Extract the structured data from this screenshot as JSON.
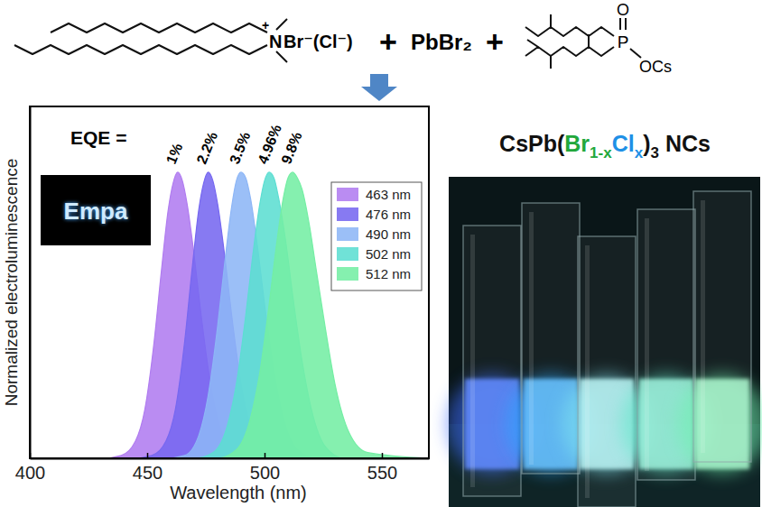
{
  "chart_data": {
    "type": "area",
    "x_label": "Wavelength (nm)",
    "y_label": "Normalized electroluminescence",
    "xlim": [
      400,
      570
    ],
    "xticks": [
      400,
      450,
      500,
      550
    ],
    "ylim": [
      0,
      1.23
    ],
    "yticks": [],
    "tick_labels": "x",
    "legend": "upper right",
    "series": [
      {
        "name": "463 nm",
        "color": "#b07cf0",
        "x": [
          400,
          431,
          439,
          445,
          449,
          453,
          456,
          459,
          461,
          463,
          465,
          467,
          470,
          473,
          477,
          481,
          487,
          495,
          570
        ],
        "values": [
          0,
          0,
          0.01,
          0.06,
          0.17,
          0.41,
          0.65,
          0.87,
          0.96,
          1,
          0.97,
          0.89,
          0.71,
          0.5,
          0.26,
          0.11,
          0.02,
          0,
          0
        ]
      },
      {
        "name": "476 nm",
        "color": "#7668f0",
        "x": [
          400,
          444,
          452,
          458,
          462,
          466,
          469,
          472,
          474,
          476,
          478,
          480,
          483,
          486,
          490,
          494,
          500,
          508,
          570
        ],
        "values": [
          0,
          0,
          0.01,
          0.06,
          0.17,
          0.41,
          0.65,
          0.87,
          0.96,
          1,
          0.97,
          0.89,
          0.71,
          0.5,
          0.26,
          0.11,
          0.02,
          0,
          0
        ]
      },
      {
        "name": "490 nm",
        "color": "#8db6f6",
        "x": [
          400,
          458,
          466,
          472,
          476,
          480,
          483,
          486,
          488,
          490,
          492,
          494,
          497,
          500,
          504,
          508,
          514,
          522,
          570
        ],
        "values": [
          0,
          0,
          0.01,
          0.08,
          0.22,
          0.46,
          0.68,
          0.88,
          0.97,
          1,
          0.98,
          0.91,
          0.74,
          0.54,
          0.3,
          0.14,
          0.03,
          0,
          0
        ]
      },
      {
        "name": "502 nm",
        "color": "#5cded2",
        "x": [
          400,
          470,
          478,
          484,
          488,
          492,
          495,
          498,
          500,
          502,
          504,
          506,
          509,
          512,
          516,
          520,
          526,
          534,
          570
        ],
        "values": [
          0,
          0,
          0.02,
          0.11,
          0.26,
          0.5,
          0.71,
          0.89,
          0.97,
          1,
          0.98,
          0.91,
          0.76,
          0.57,
          0.34,
          0.17,
          0.04,
          0,
          0
        ]
      },
      {
        "name": "512 nm",
        "color": "#74eea4",
        "x": [
          400,
          480,
          488,
          494,
          498,
          502,
          505,
          508,
          510,
          512,
          514,
          516,
          519,
          522,
          526,
          530,
          536,
          544,
          570
        ],
        "values": [
          0,
          0,
          0.03,
          0.14,
          0.3,
          0.54,
          0.74,
          0.91,
          0.98,
          1,
          0.98,
          0.94,
          0.82,
          0.66,
          0.45,
          0.26,
          0.09,
          0.02,
          0
        ]
      }
    ],
    "annotations": [
      {
        "text": "EQE ="
      },
      {
        "text": "1%",
        "x": 463,
        "y": 1
      },
      {
        "text": "2.2%",
        "x": 476,
        "y": 1
      },
      {
        "text": "3.5%",
        "x": 490,
        "y": 1
      },
      {
        "text": "4.96%",
        "x": 502,
        "y": 1
      },
      {
        "text": "9.8%",
        "x": 512,
        "y": 1
      }
    ]
  },
  "inset_photo": {
    "text": "Empa"
  },
  "scheme": {
    "cation": "N",
    "charge": "+",
    "anion": "Br⁻(Cl⁻)",
    "plus_signs": [
      "+",
      "+"
    ],
    "lead_salt": "PbBr₂",
    "phosphinate_oxygen": "O",
    "phosphinate_phosphorus": "P",
    "phosphinate_salt": "OCs"
  },
  "photo": {
    "title_parts": [
      {
        "text": "CsPb("
      },
      {
        "text": "Br",
        "color": "#22a83c"
      },
      {
        "text": "1-x",
        "sub": true,
        "color": "#22a83c"
      },
      {
        "text": "Cl",
        "color": "#1e90e6"
      },
      {
        "text": "x",
        "sub": true,
        "color": "#1e90e6"
      },
      {
        "text": ")"
      },
      {
        "text": "3",
        "sub": true
      },
      {
        "text": " NCs"
      }
    ]
  }
}
